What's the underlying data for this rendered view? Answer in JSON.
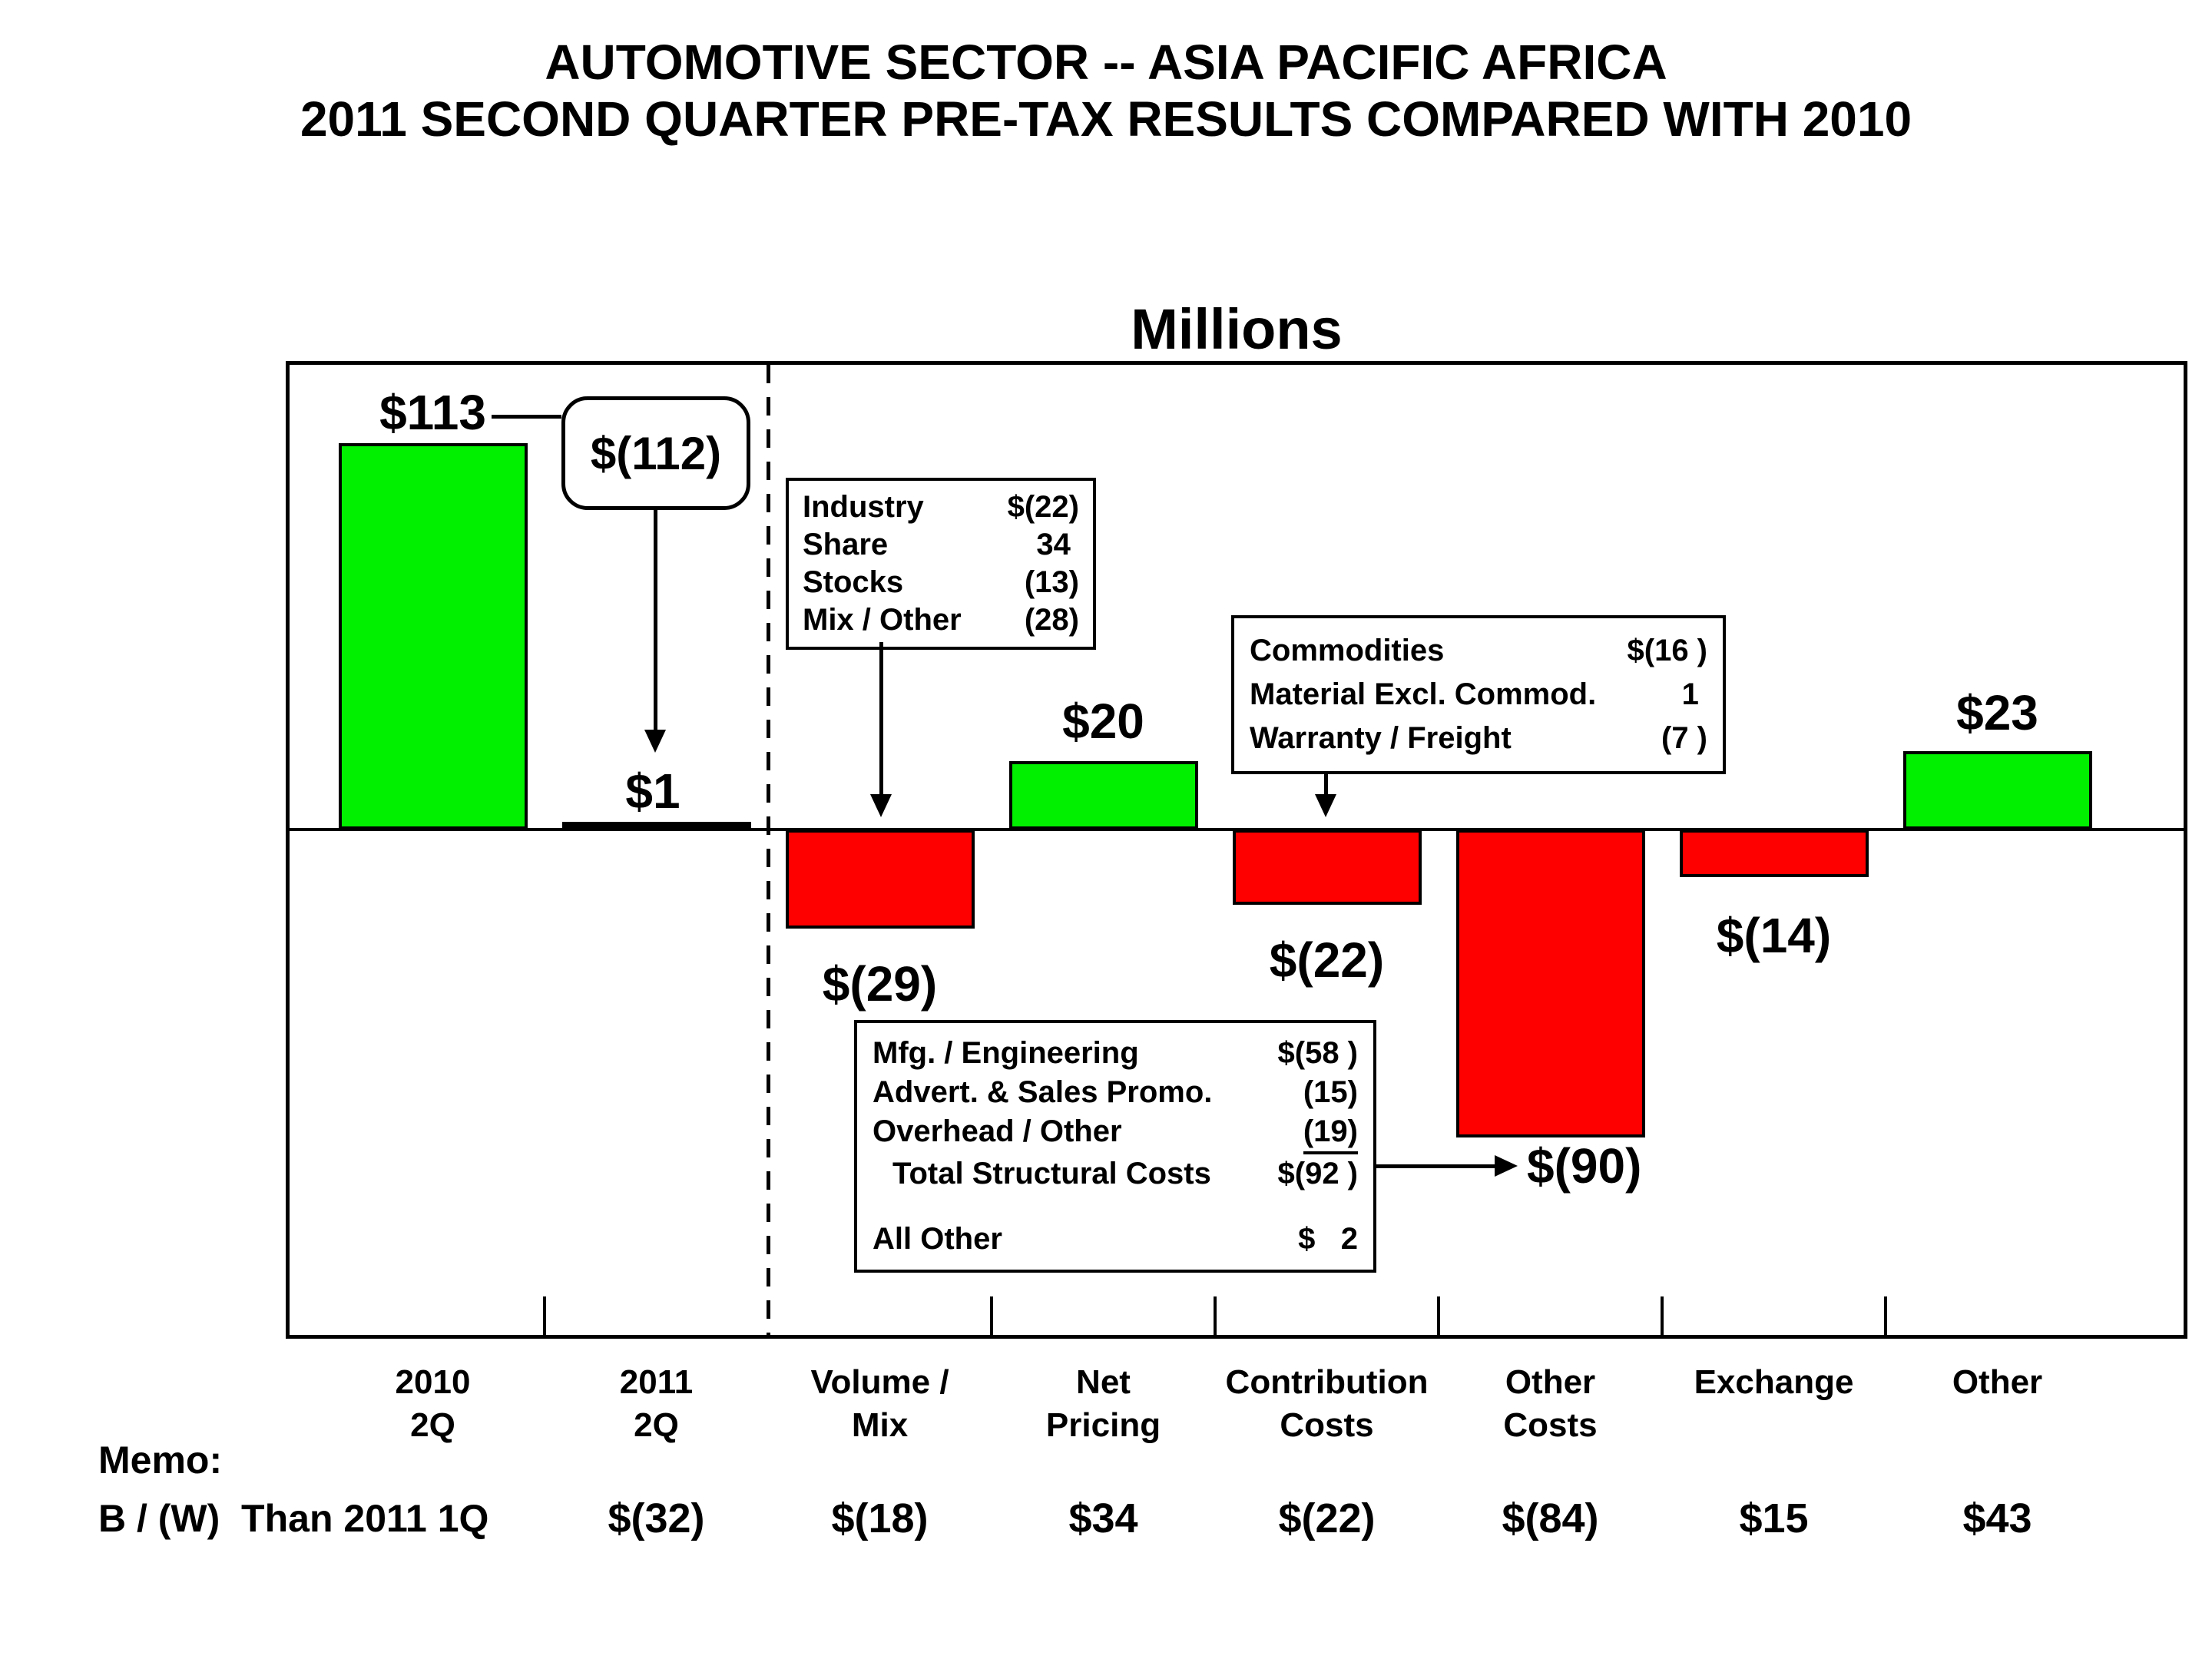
{
  "title": {
    "line1": "AUTOMOTIVE SECTOR -- ASIA PACIFIC AFRICA",
    "line2": "2011 SECOND QUARTER PRE-TAX RESULTS COMPARED WITH 2010"
  },
  "chart": {
    "units_heading": "Millions",
    "callout_2011_value": "$(112)"
  },
  "chart_data": {
    "type": "bar",
    "subtype": "waterfall-variance",
    "title": "Millions",
    "categories": [
      "2010 2Q",
      "2011 2Q",
      "Volume / Mix",
      "Net Pricing",
      "Contribution Costs",
      "Other Costs",
      "Exchange",
      "Other"
    ],
    "category_label_lines": [
      [
        "2010",
        "2Q"
      ],
      [
        "2011",
        "2Q"
      ],
      [
        "Volume /",
        "Mix"
      ],
      [
        "Net",
        "Pricing"
      ],
      [
        "Contribution",
        "Costs"
      ],
      [
        "Other",
        "Costs"
      ],
      [
        "Exchange"
      ],
      [
        "Other"
      ]
    ],
    "values": [
      113,
      1,
      -29,
      20,
      -22,
      -90,
      -14,
      23
    ],
    "bar_labels": [
      "$113",
      "$1",
      "$(29)",
      "$20",
      "$(22)",
      "$(90)",
      "$(14)",
      "$23"
    ],
    "positive_color": "#00F000",
    "negative_color": "#FF0000",
    "near_zero_bar_color": "#000000",
    "callout": {
      "from": "2010 2Q",
      "to": "2011 2Q",
      "text": "$(112)"
    },
    "memo_series": {
      "name": "B / (W)  Than 2011 1Q",
      "values": [
        null,
        -32,
        -18,
        34,
        -22,
        -84,
        15,
        43
      ],
      "labels": [
        "",
        "$(32)",
        "$(18)",
        "$34",
        "$(22)",
        "$(84)",
        "$15",
        "$43"
      ]
    },
    "gridlines": false,
    "legend": "none",
    "separator": "dashed vertical line between 2011 2Q and Volume / Mix"
  },
  "annotations": {
    "volume_mix_box": {
      "target": "Volume / Mix",
      "rows": [
        {
          "label": "Industry",
          "value": "$(22)"
        },
        {
          "label": "Share",
          "value": "34 "
        },
        {
          "label": "Stocks",
          "value": "(13)"
        },
        {
          "label": "Mix / Other",
          "value": "(28)"
        }
      ]
    },
    "contribution_costs_box": {
      "target": "Contribution Costs",
      "rows": [
        {
          "label": "Commodities",
          "value": "$(16 )"
        },
        {
          "label": "Material Excl. Commod.",
          "value": "1 "
        },
        {
          "label": "Warranty / Freight",
          "value": "(7 )"
        }
      ]
    },
    "other_costs_box": {
      "target": "Other Costs",
      "rows": [
        {
          "label": "Mfg. / Engineering",
          "value": "$(58 )"
        },
        {
          "label": "Advert. & Sales Promo.",
          "value": "(15)"
        },
        {
          "label": "Overhead / Other",
          "value": "(19)",
          "underline": true
        },
        {
          "label": "Total Structural Costs",
          "value": "$(92 )",
          "indent": true
        },
        {
          "spacer": true
        },
        {
          "label": "All Other",
          "value": "$   2"
        }
      ]
    }
  },
  "memo": {
    "heading": "Memo:",
    "row_label": "B / (W)  Than 2011 1Q"
  }
}
